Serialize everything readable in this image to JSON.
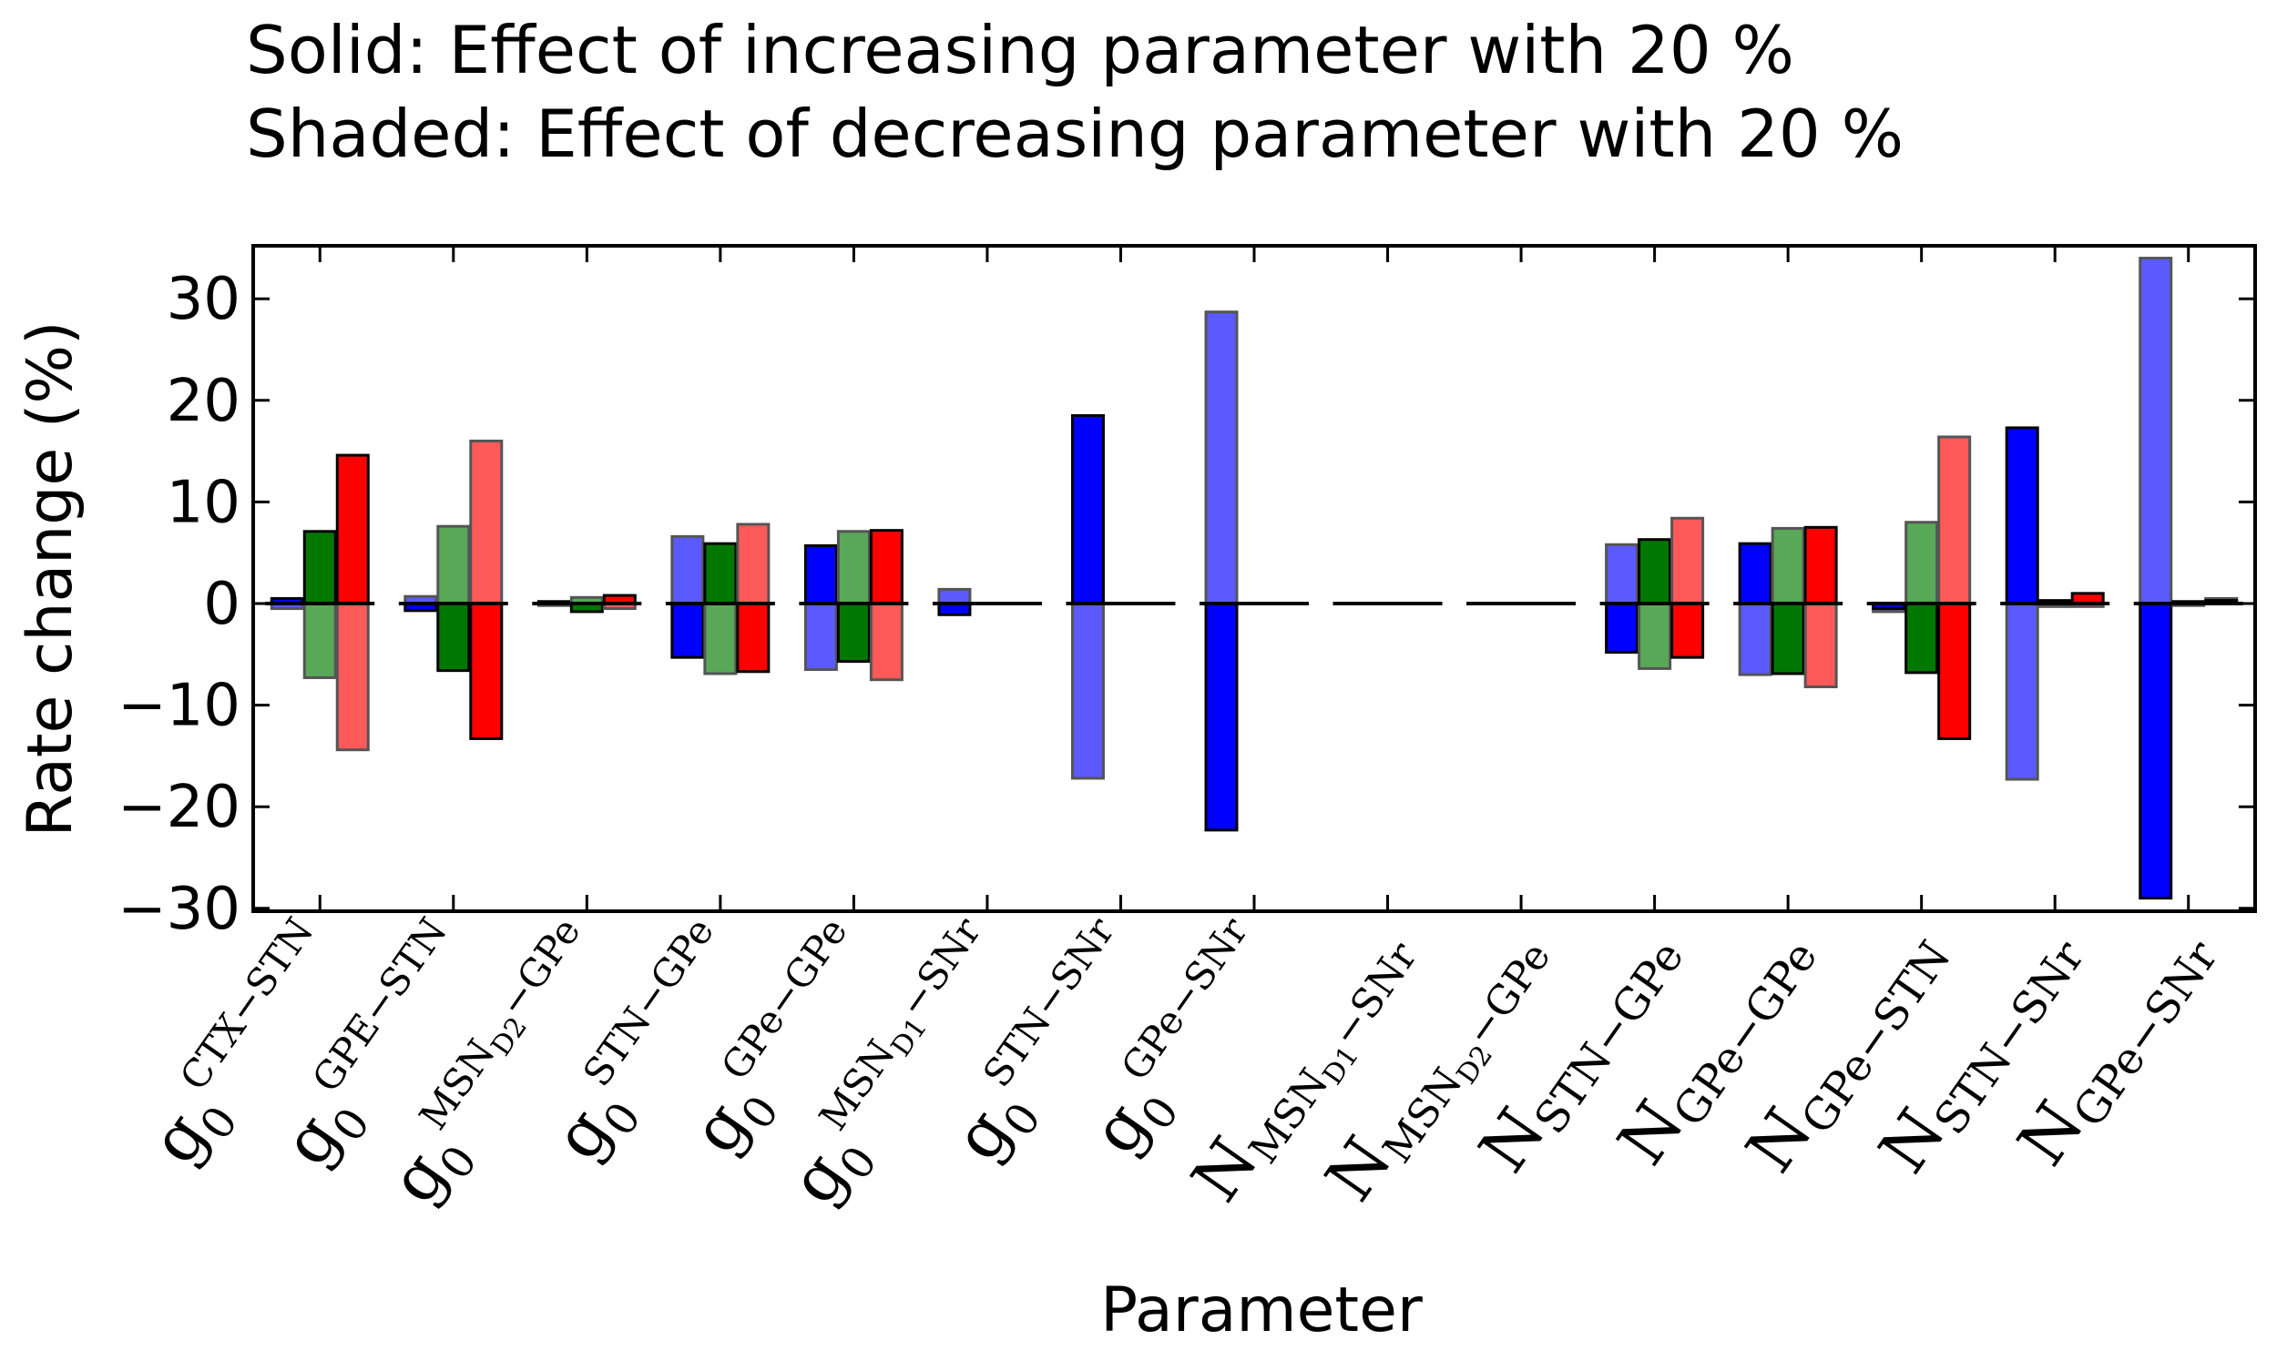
{
  "chart_data": {
    "type": "bar",
    "title_lines": [
      "Solid: Effect of increasing parameter with 20 %",
      "Shaded: Effect of decreasing parameter with 20 %"
    ],
    "xlabel": "Parameter",
    "ylabel": "Rate change (%)",
    "ylim": [
      -30,
      35
    ],
    "yticks": [
      30,
      20,
      10,
      0,
      -10,
      -20,
      -30
    ],
    "ytick_labels": [
      "30",
      "20",
      "10",
      "0",
      "−10",
      "−20",
      "−30"
    ],
    "grid": false,
    "categories": [
      {
        "base": "g",
        "sub": "0",
        "sup": "CTX−STN",
        "supsub": ""
      },
      {
        "base": "g",
        "sub": "0",
        "sup": "GPE−STN",
        "supsub": ""
      },
      {
        "base": "g",
        "sub": "0",
        "sup": "MSN",
        "supsub": "D2",
        "sup2": "−GPe"
      },
      {
        "base": "g",
        "sub": "0",
        "sup": "STN−GPe",
        "supsub": ""
      },
      {
        "base": "g",
        "sub": "0",
        "sup": "GPe−GPe",
        "supsub": ""
      },
      {
        "base": "g",
        "sub": "0",
        "sup": "MSN",
        "supsub": "D1",
        "sup2": "−SNr"
      },
      {
        "base": "g",
        "sub": "0",
        "sup": "STN−SNr",
        "supsub": ""
      },
      {
        "base": "g",
        "sub": "0",
        "sup": "GPe−SNr",
        "supsub": ""
      },
      {
        "base": "N",
        "sub": "MSN",
        "subsub": "D1",
        "sub2": "−SNr"
      },
      {
        "base": "N",
        "sub": "MSN",
        "subsub": "D2",
        "sub2": "−GPe"
      },
      {
        "base": "N",
        "sub": "STN−GPe"
      },
      {
        "base": "N",
        "sub": "GPe−GPe"
      },
      {
        "base": "N",
        "sub": "GPe−STN"
      },
      {
        "base": "N",
        "sub": "STN−SNr"
      },
      {
        "base": "N",
        "sub": "GPe−SNr"
      }
    ],
    "series": [
      {
        "name": "Blue",
        "color": "#0000ff",
        "shaded_color": "#5a5aff",
        "increase": [
          0.5,
          -0.7,
          0.2,
          -5.3,
          5.7,
          -1.1,
          18.5,
          -22.3,
          0,
          0,
          -4.8,
          5.9,
          -0.5,
          17.3,
          -29.0
        ],
        "decrease": [
          -0.5,
          0.7,
          -0.2,
          6.6,
          -6.5,
          1.4,
          -17.2,
          28.7,
          0,
          0,
          5.8,
          -7.0,
          -0.8,
          -17.3,
          34.0
        ]
      },
      {
        "name": "Green",
        "color": "#007800",
        "shaded_color": "#58a858",
        "increase": [
          7.1,
          -6.6,
          -0.8,
          5.9,
          -5.7,
          0,
          0,
          0,
          0,
          0,
          6.3,
          -6.9,
          -6.8,
          0.3,
          0.2
        ],
        "decrease": [
          -7.3,
          7.6,
          0.6,
          -6.9,
          7.1,
          0,
          0,
          0,
          0,
          0,
          -6.4,
          7.4,
          8.0,
          -0.3,
          -0.2
        ]
      },
      {
        "name": "Red",
        "color": "#ff0000",
        "shaded_color": "#ff5a5a",
        "increase": [
          14.6,
          -13.3,
          0.8,
          -6.7,
          7.2,
          0,
          0,
          0,
          0,
          0,
          -5.3,
          7.5,
          -13.3,
          1.0,
          0.3
        ],
        "decrease": [
          -14.4,
          16.0,
          -0.5,
          7.8,
          -7.5,
          0,
          0,
          0,
          0,
          0,
          8.4,
          -8.2,
          16.4,
          -0.3,
          0.5
        ]
      }
    ]
  }
}
